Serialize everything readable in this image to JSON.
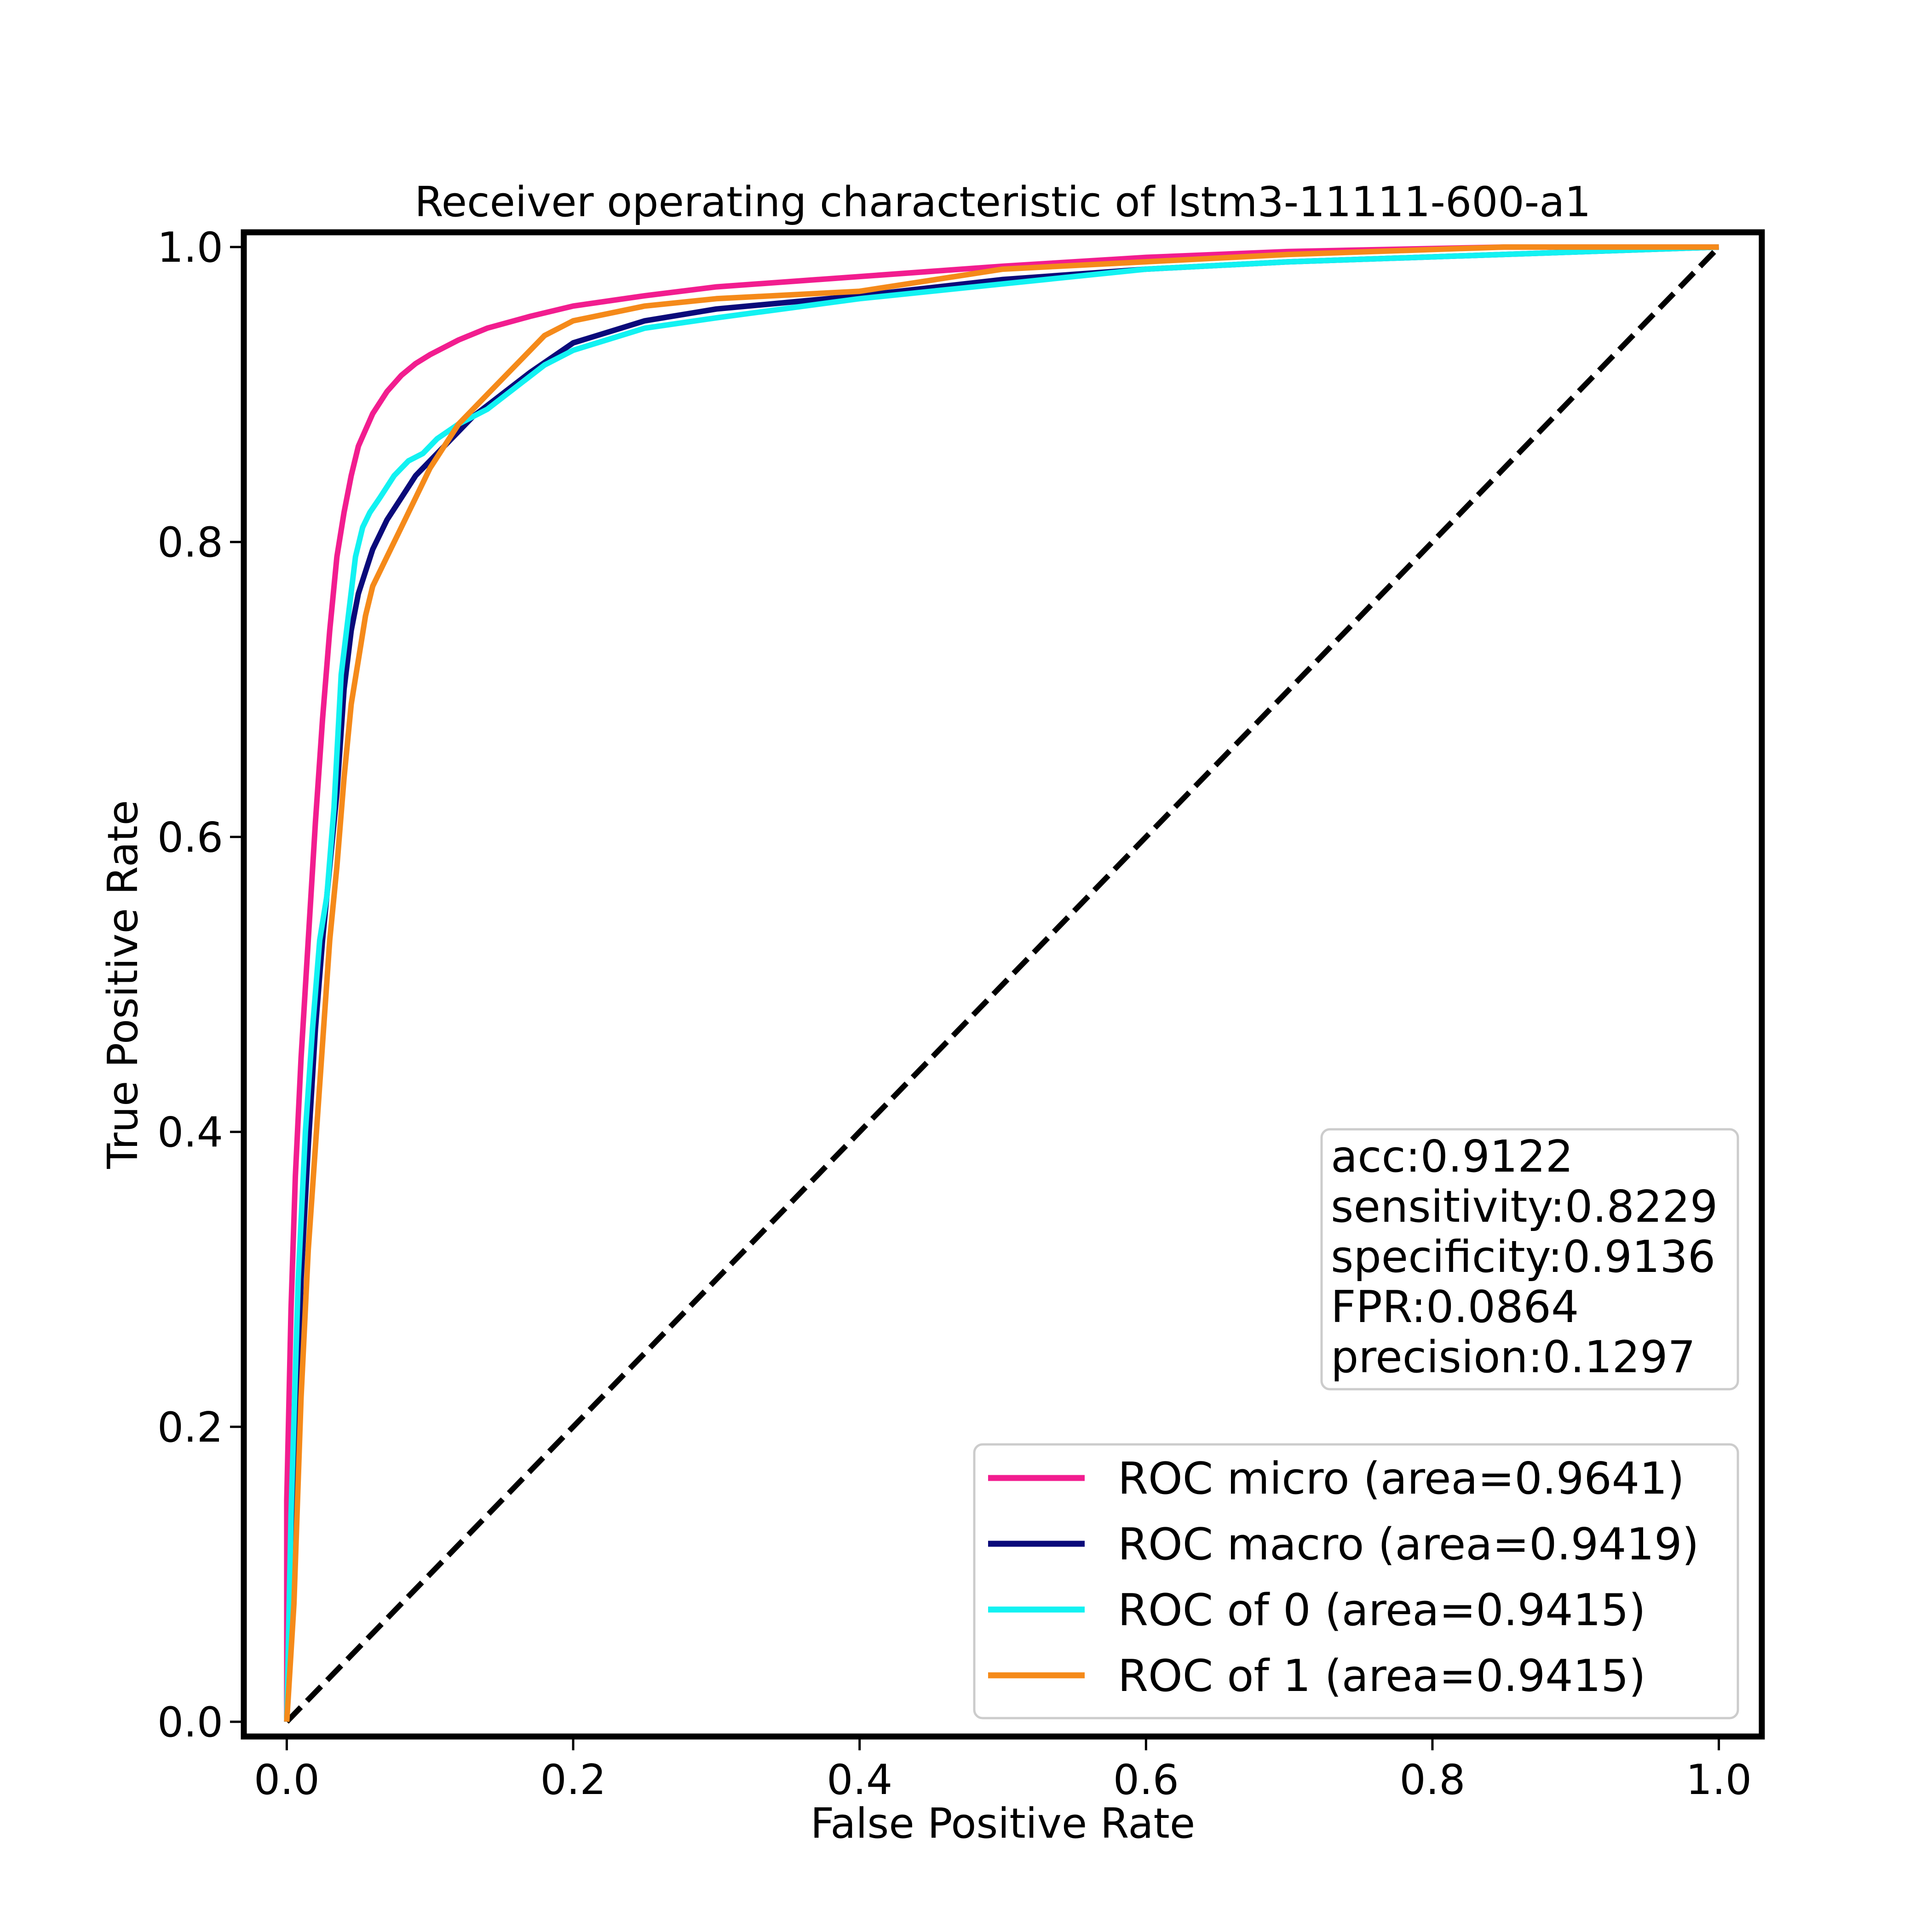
{
  "chart_data": {
    "type": "line",
    "title": "Receiver operating characteristic of lstm3-11111-600-a1",
    "xlabel": "False Positive Rate",
    "ylabel": "True Positive Rate",
    "xlim": [
      -0.03,
      1.03
    ],
    "ylim": [
      -0.01,
      1.01
    ],
    "xticks": [
      "0.0",
      "0.2",
      "0.4",
      "0.6",
      "0.8",
      "1.0"
    ],
    "yticks": [
      "0.0",
      "0.2",
      "0.4",
      "0.6",
      "0.8",
      "1.0"
    ],
    "grid": false,
    "legend_position": "lower-right",
    "metrics": [
      "acc:0.9122",
      "sensitivity:0.8229",
      "specificity:0.9136",
      "FPR:0.0864",
      "precision:0.1297"
    ],
    "series": [
      {
        "name": "ROC micro (area=0.9641)",
        "color": "#f21d8f",
        "x": [
          0.0,
          0.0,
          0.003,
          0.006,
          0.01,
          0.015,
          0.02,
          0.025,
          0.03,
          0.035,
          0.04,
          0.045,
          0.05,
          0.055,
          0.06,
          0.07,
          0.08,
          0.09,
          0.1,
          0.12,
          0.14,
          0.17,
          0.2,
          0.25,
          0.3,
          0.4,
          0.5,
          0.6,
          0.7,
          0.85,
          1.0
        ],
        "y": [
          0.0,
          0.15,
          0.28,
          0.37,
          0.45,
          0.53,
          0.61,
          0.68,
          0.74,
          0.79,
          0.82,
          0.845,
          0.865,
          0.876,
          0.887,
          0.902,
          0.913,
          0.921,
          0.927,
          0.937,
          0.945,
          0.953,
          0.96,
          0.967,
          0.973,
          0.98,
          0.987,
          0.993,
          0.997,
          1.0,
          1.0
        ]
      },
      {
        "name": "ROC macro (area=0.9419)",
        "color": "#0a0a7a",
        "x": [
          0.0,
          0.005,
          0.01,
          0.015,
          0.02,
          0.025,
          0.03,
          0.035,
          0.04,
          0.045,
          0.05,
          0.055,
          0.06,
          0.07,
          0.08,
          0.09,
          0.1,
          0.11,
          0.12,
          0.13,
          0.15,
          0.17,
          0.2,
          0.25,
          0.3,
          0.4,
          0.5,
          0.6,
          0.7,
          0.85,
          1.0
        ],
        "y": [
          0.0,
          0.15,
          0.3,
          0.39,
          0.47,
          0.53,
          0.58,
          0.63,
          0.7,
          0.74,
          0.765,
          0.78,
          0.795,
          0.815,
          0.83,
          0.845,
          0.855,
          0.865,
          0.875,
          0.885,
          0.9,
          0.915,
          0.935,
          0.95,
          0.958,
          0.967,
          0.978,
          0.985,
          0.99,
          0.995,
          1.0
        ]
      },
      {
        "name": "ROC of 0 (area=0.9415)",
        "color": "#12f2f2",
        "x": [
          0.0,
          0.003,
          0.008,
          0.013,
          0.018,
          0.023,
          0.028,
          0.033,
          0.038,
          0.043,
          0.048,
          0.053,
          0.058,
          0.065,
          0.075,
          0.085,
          0.095,
          0.105,
          0.12,
          0.14,
          0.16,
          0.18,
          0.2,
          0.25,
          0.3,
          0.4,
          0.5,
          0.6,
          0.7,
          0.85,
          1.0
        ],
        "y": [
          0.0,
          0.14,
          0.3,
          0.4,
          0.47,
          0.53,
          0.56,
          0.62,
          0.71,
          0.75,
          0.79,
          0.81,
          0.82,
          0.83,
          0.845,
          0.855,
          0.86,
          0.87,
          0.88,
          0.89,
          0.905,
          0.92,
          0.93,
          0.945,
          0.952,
          0.965,
          0.975,
          0.985,
          0.99,
          0.995,
          1.0
        ]
      },
      {
        "name": "ROC of 1 (area=0.9415)",
        "color": "#f58a1a",
        "x": [
          0.0,
          0.005,
          0.01,
          0.015,
          0.02,
          0.025,
          0.03,
          0.035,
          0.04,
          0.045,
          0.05,
          0.055,
          0.06,
          0.07,
          0.08,
          0.09,
          0.1,
          0.11,
          0.12,
          0.14,
          0.16,
          0.18,
          0.2,
          0.25,
          0.3,
          0.4,
          0.5,
          0.6,
          0.7,
          0.85,
          1.0
        ],
        "y": [
          0.0,
          0.08,
          0.22,
          0.32,
          0.39,
          0.46,
          0.53,
          0.58,
          0.64,
          0.69,
          0.72,
          0.75,
          0.77,
          0.79,
          0.81,
          0.83,
          0.85,
          0.865,
          0.88,
          0.9,
          0.92,
          0.94,
          0.95,
          0.96,
          0.965,
          0.97,
          0.985,
          0.99,
          0.995,
          1.0,
          1.0
        ]
      },
      {
        "name": "",
        "color": "#000000",
        "dashed": true,
        "x": [
          0.0,
          1.0
        ],
        "y": [
          0.0,
          1.0
        ]
      }
    ]
  }
}
